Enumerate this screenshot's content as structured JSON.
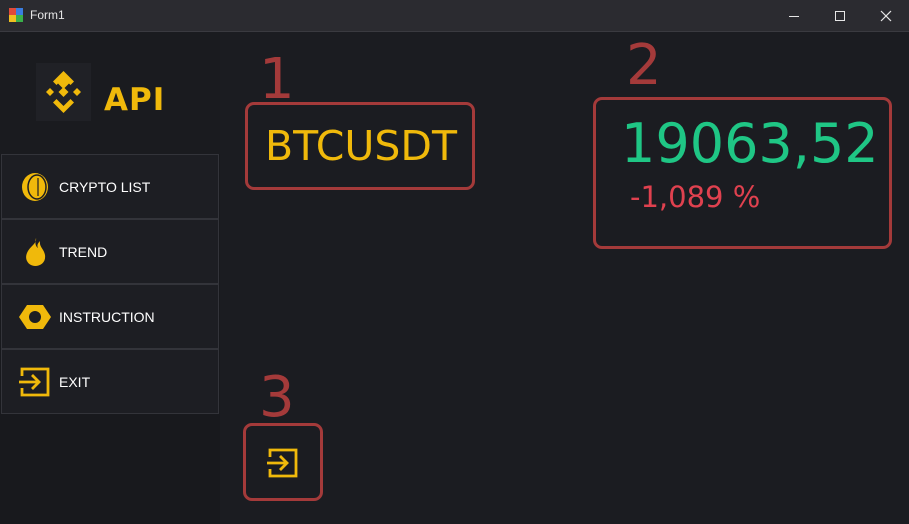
{
  "window": {
    "title": "Form1"
  },
  "logo": {
    "text": "API"
  },
  "menu": [
    {
      "label": "CRYPTO LIST",
      "icon": "coin-icon"
    },
    {
      "label": "TREND",
      "icon": "flame-icon"
    },
    {
      "label": "INSTRUCTION",
      "icon": "hexagon-icon"
    },
    {
      "label": "EXIT",
      "icon": "exit-icon"
    }
  ],
  "annotations": {
    "n1": "1",
    "n2": "2",
    "n3": "3"
  },
  "ticker": {
    "symbol": "BTCUSDT",
    "price": "19063,52",
    "change": "-1,089 %"
  },
  "colors": {
    "accent": "#f0b90b",
    "positive": "#1fc685",
    "negative": "#e0414f",
    "annotation": "#a43a3a"
  }
}
